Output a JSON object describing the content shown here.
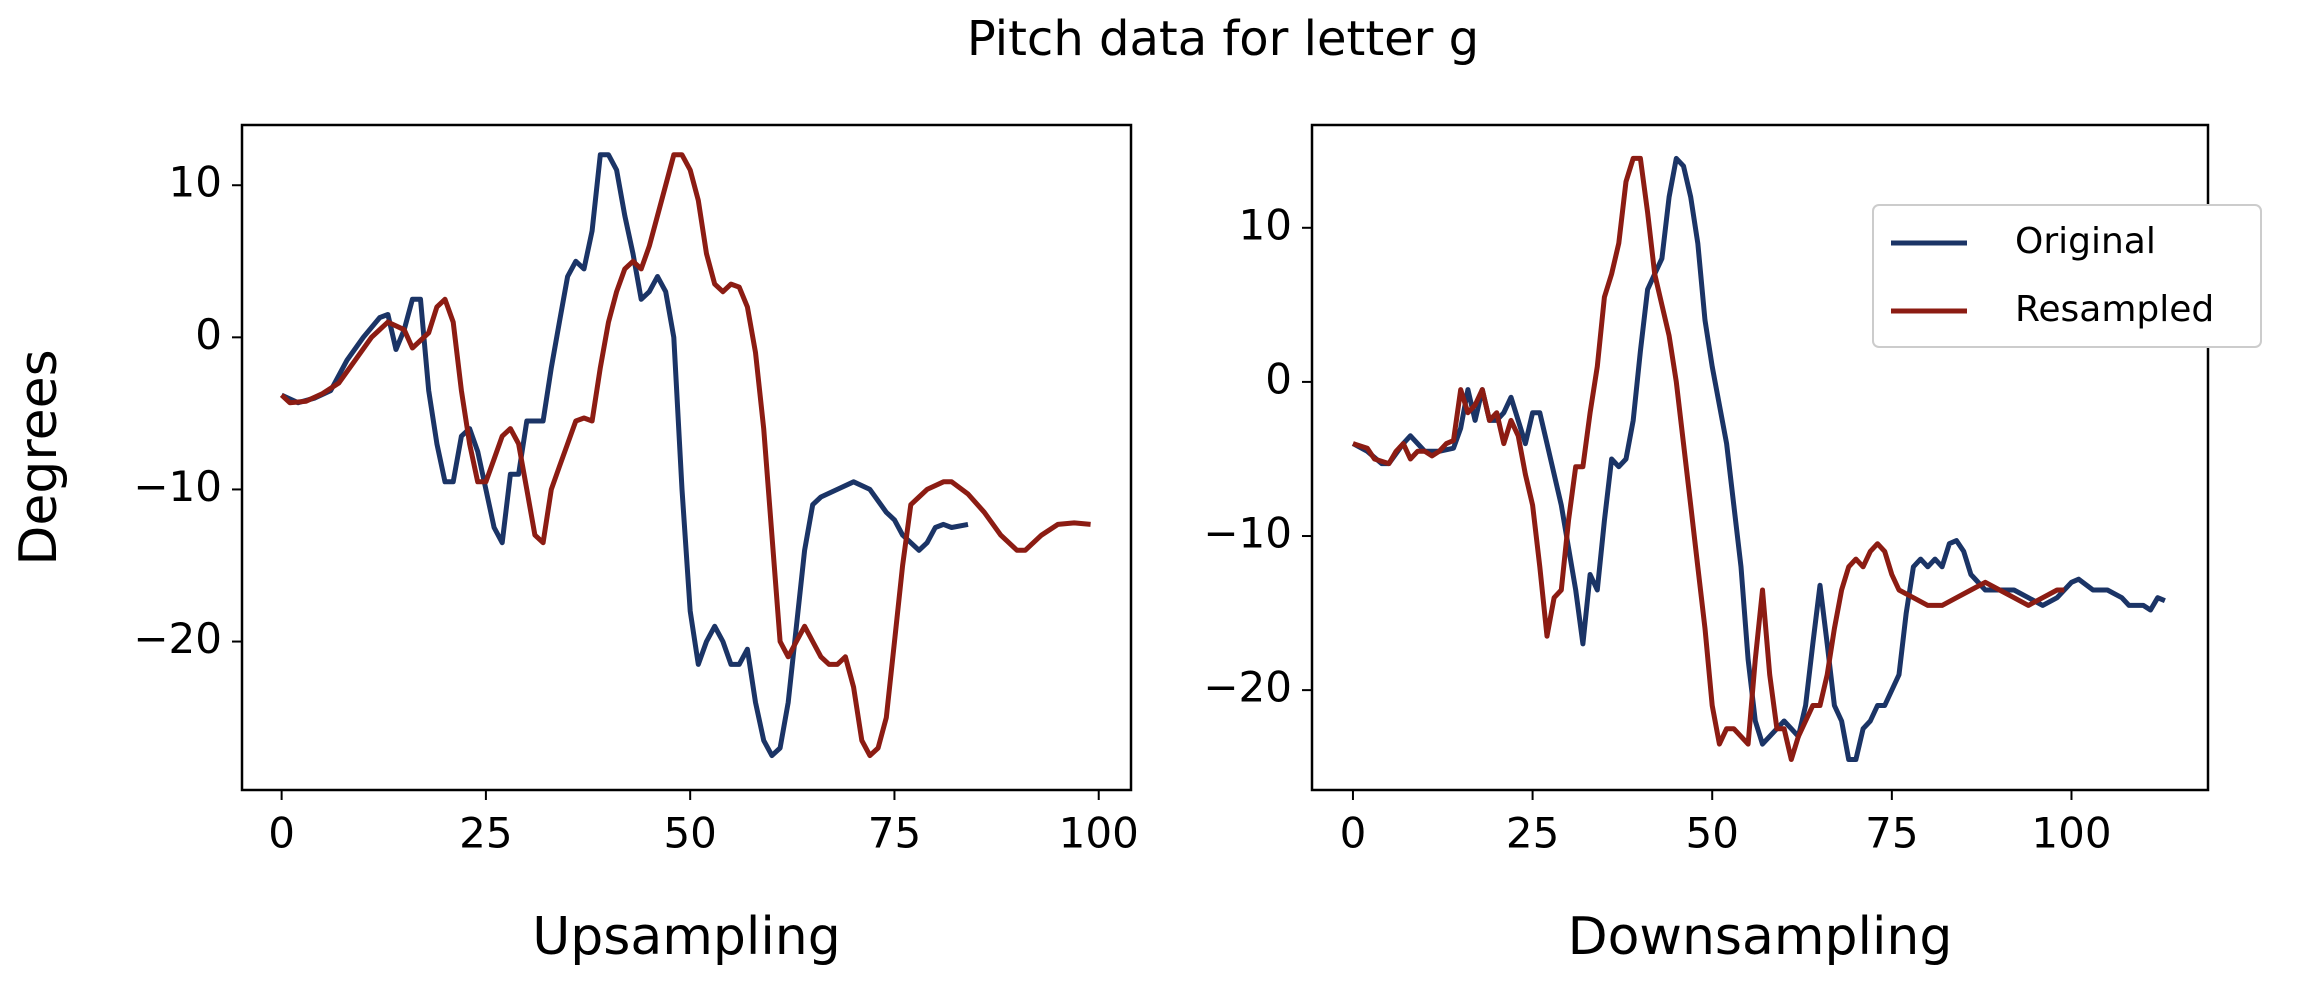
{
  "title": "Pitch data for letter g",
  "chart_data": [
    {
      "type": "line",
      "x_label": "Upsampling",
      "y_label": "Degrees",
      "xlim": [
        -4.85,
        103.95
      ],
      "ylim": [
        -29.76,
        13.96
      ],
      "xticks": [
        0,
        25,
        50,
        75,
        100
      ],
      "yticks": [
        {
          "value": -20,
          "label": "−20"
        },
        {
          "value": -10,
          "label": "−10"
        },
        0,
        10
      ],
      "series": [
        {
          "name": "Original",
          "color": "#1b3466",
          "x": [
            0,
            2,
            4,
            6,
            8,
            10,
            12,
            13,
            14,
            15,
            16,
            17,
            18,
            19,
            20,
            21,
            22,
            23,
            24,
            26,
            27,
            28,
            29,
            30,
            31,
            32,
            33,
            34,
            35,
            36,
            37,
            38,
            39,
            40,
            41,
            42,
            43,
            44,
            45,
            46,
            47,
            48,
            49,
            50,
            51,
            52,
            53,
            54,
            55,
            56,
            57,
            58,
            59,
            60,
            61,
            62,
            63,
            64,
            65,
            66,
            68,
            70,
            72,
            74,
            75,
            76,
            77,
            78,
            79,
            80,
            81,
            82,
            84
          ],
          "values": [
            -3.8,
            -4.3,
            -4,
            -3.5,
            -1.5,
            0,
            1.3,
            1.5,
            -0.8,
            0.5,
            2.5,
            2.5,
            -3.5,
            -7,
            -9.5,
            -9.5,
            -6.5,
            -6,
            -7.5,
            -12.5,
            -13.5,
            -9,
            -9,
            -5.5,
            -5.5,
            -5.5,
            -2,
            1,
            4,
            5,
            4.5,
            7,
            12,
            12,
            11,
            8,
            5.5,
            2.5,
            3,
            4,
            3,
            0,
            -10,
            -18,
            -21.5,
            -20,
            -19,
            -20,
            -21.5,
            -21.5,
            -20.5,
            -24,
            -26.5,
            -27.5,
            -27,
            -24,
            -19,
            -14,
            -11,
            -10.5,
            -10,
            -9.5,
            -10,
            -11.5,
            -12,
            -13,
            -13.5,
            -14,
            -13.5,
            -12.5,
            -12.3,
            -12.5,
            -12.3
          ]
        },
        {
          "name": "Resampled",
          "color": "#8c1c13",
          "x": [
            0,
            1,
            3,
            5,
            7,
            9,
            11,
            13,
            15,
            16,
            18,
            19,
            20,
            21,
            22,
            23,
            24,
            25,
            26,
            27,
            28,
            29,
            30,
            31,
            32,
            33,
            34,
            35,
            36,
            37,
            38,
            39,
            40,
            41,
            42,
            43,
            44,
            45,
            46,
            47,
            48,
            49,
            50,
            51,
            52,
            53,
            54,
            55,
            56,
            57,
            58,
            59,
            60,
            61,
            62,
            63,
            64,
            65,
            66,
            67,
            68,
            69,
            70,
            71,
            72,
            73,
            74,
            75,
            76,
            77,
            78,
            79,
            81,
            82,
            84,
            86,
            88,
            90,
            91,
            93,
            95,
            97,
            99
          ],
          "values": [
            -3.8,
            -4.3,
            -4.2,
            -3.7,
            -3,
            -1.5,
            0,
            1,
            0.5,
            -0.7,
            0.3,
            2,
            2.5,
            1,
            -3.5,
            -7,
            -9.5,
            -9.5,
            -8,
            -6.5,
            -6,
            -7,
            -10,
            -13,
            -13.5,
            -10,
            -8.5,
            -7,
            -5.5,
            -5.3,
            -5.5,
            -2,
            1,
            3,
            4.5,
            5,
            4.5,
            6,
            8,
            10,
            12,
            12,
            11,
            9,
            5.5,
            3.5,
            3,
            3.5,
            3.3,
            2,
            -1,
            -6,
            -13,
            -20,
            -21,
            -20,
            -19,
            -20,
            -21,
            -21.5,
            -21.5,
            -21,
            -23,
            -26.5,
            -27.5,
            -27,
            -25,
            -20,
            -15,
            -11,
            -10.5,
            -10,
            -9.5,
            -9.5,
            -10.3,
            -11.5,
            -13,
            -14,
            -14,
            -13,
            -12.3,
            -12.2,
            -12.3
          ]
        }
      ]
    },
    {
      "type": "line",
      "x_label": "Downsampling",
      "legend": "upper right",
      "xlim": [
        -5.7,
        119
      ],
      "ylim": [
        -26.48,
        16.67
      ],
      "xticks": [
        0,
        25,
        50,
        75,
        100
      ],
      "yticks": [
        {
          "value": -20,
          "label": "−20"
        },
        {
          "value": -10,
          "label": "−10"
        },
        0,
        10
      ],
      "series": [
        {
          "name": "Original",
          "color": "#1b3466",
          "x": [
            0,
            2,
            4,
            5,
            7,
            8,
            10,
            12,
            14,
            15,
            16,
            17,
            18,
            19,
            20,
            21,
            22,
            24,
            25,
            26,
            27,
            29,
            31,
            32,
            33,
            34,
            35,
            36,
            37,
            38,
            39,
            40,
            41,
            42,
            43,
            44,
            45,
            46,
            47,
            48,
            49,
            50,
            52,
            53,
            54,
            55,
            56,
            57,
            59,
            60,
            61,
            62,
            63,
            64,
            65,
            66,
            67,
            68,
            69,
            70,
            71,
            72,
            73,
            74,
            76,
            77,
            78,
            79,
            80,
            81,
            82,
            83,
            84,
            85,
            86,
            88,
            90,
            92,
            94,
            96,
            98,
            100,
            101,
            103,
            105,
            107,
            108,
            110,
            111,
            112,
            113
          ],
          "values": [
            -4,
            -4.5,
            -5.3,
            -5.3,
            -4,
            -3.5,
            -4.5,
            -4.5,
            -4.3,
            -3,
            -0.5,
            -2.5,
            -0.5,
            -2.5,
            -2.5,
            -2,
            -1,
            -4,
            -2,
            -2,
            -4,
            -8,
            -13.5,
            -17,
            -12.5,
            -13.5,
            -9,
            -5,
            -5.5,
            -5,
            -2.5,
            2,
            6,
            7,
            8,
            12,
            14.5,
            14,
            12,
            9,
            4,
            1,
            -4,
            -8,
            -12,
            -18,
            -22,
            -23.5,
            -22.5,
            -22,
            -22.5,
            -23,
            -21,
            -17,
            -13.2,
            -17,
            -21,
            -22,
            -24.5,
            -24.5,
            -22.5,
            -22,
            -21,
            -21,
            -19,
            -15,
            -12,
            -11.5,
            -12,
            -11.5,
            -12,
            -10.5,
            -10.3,
            -11,
            -12.5,
            -13.5,
            -13.5,
            -13.5,
            -14,
            -14.5,
            -14,
            -13,
            -12.8,
            -13.5,
            -13.5,
            -14,
            -14.5,
            -14.5,
            -14.8,
            -14,
            -14.2
          ]
        },
        {
          "name": "Resampled",
          "color": "#8c1c13",
          "x": [
            0,
            2,
            3,
            5,
            6,
            7,
            8,
            9,
            10,
            11,
            12,
            13,
            14,
            15,
            16,
            17,
            18,
            19,
            20,
            21,
            22,
            23,
            24,
            25,
            26,
            27,
            28,
            29,
            30,
            31,
            32,
            33,
            34,
            35,
            36,
            37,
            38,
            39,
            40,
            41,
            42,
            43,
            44,
            45,
            46,
            47,
            48,
            49,
            50,
            51,
            52,
            53,
            54,
            55,
            56,
            57,
            58,
            59,
            60,
            61,
            62,
            63,
            64,
            65,
            66,
            67,
            68,
            69,
            70,
            71,
            72,
            73,
            74,
            75,
            76,
            78,
            80,
            82,
            84,
            86,
            88,
            90,
            92,
            94,
            96,
            98,
            99
          ],
          "values": [
            -4,
            -4.3,
            -5,
            -5.3,
            -4.5,
            -4,
            -5,
            -4.5,
            -4.5,
            -4.8,
            -4.5,
            -4,
            -3.8,
            -0.5,
            -2,
            -1.5,
            -0.5,
            -2.5,
            -2,
            -4,
            -2.5,
            -3.5,
            -6,
            -8,
            -12,
            -16.5,
            -14,
            -13.5,
            -9,
            -5.5,
            -5.5,
            -2,
            1,
            5.5,
            7,
            9,
            13,
            14.5,
            14.5,
            11,
            7,
            5,
            3,
            0,
            -4,
            -8,
            -12,
            -16,
            -21,
            -23.5,
            -22.5,
            -22.5,
            -23,
            -23.5,
            -18,
            -13.5,
            -19,
            -22.5,
            -22.5,
            -24.5,
            -23,
            -22,
            -21,
            -21,
            -19,
            -16,
            -13.5,
            -12,
            -11.5,
            -12,
            -11,
            -10.5,
            -11,
            -12.5,
            -13.5,
            -14,
            -14.5,
            -14.5,
            -14,
            -13.5,
            -13,
            -13.5,
            -14,
            -14.5,
            -14,
            -13.5,
            -13.5
          ]
        }
      ]
    }
  ]
}
